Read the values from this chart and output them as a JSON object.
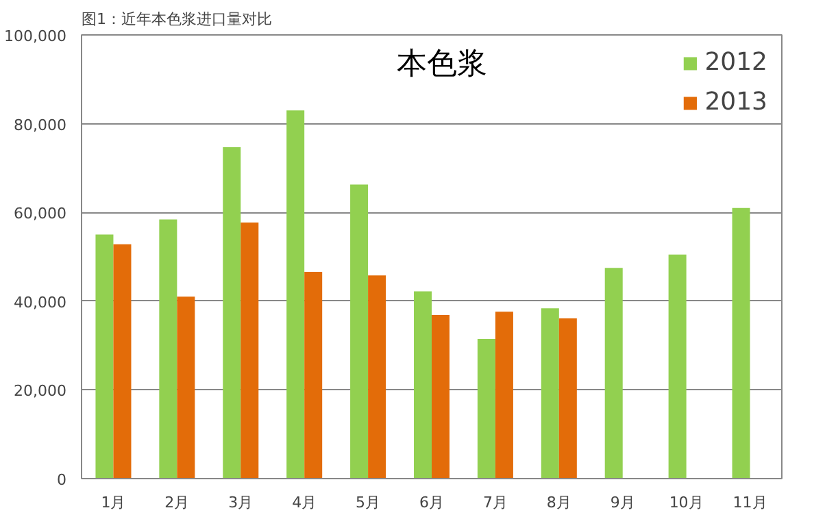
{
  "chart_data": {
    "type": "bar",
    "title": "本色浆",
    "annotations": [
      "图1：近年本色浆进口量对比"
    ],
    "categories": [
      "1月",
      "2月",
      "3月",
      "4月",
      "5月",
      "6月",
      "7月",
      "8月",
      "9月",
      "10月",
      "11月"
    ],
    "series": [
      {
        "name": "2012",
        "color": "#92d050",
        "values": [
          55000,
          58400,
          74700,
          83000,
          66300,
          42200,
          31500,
          38400,
          47500,
          50500,
          61000
        ]
      },
      {
        "name": "2013",
        "color": "#e36c09",
        "values": [
          52800,
          41000,
          57700,
          46600,
          45800,
          36900,
          37600,
          36100,
          null,
          null,
          null
        ]
      }
    ],
    "ylim": [
      0,
      100000
    ],
    "yticks": [
      {
        "value": 0,
        "label": "0"
      },
      {
        "value": 20000,
        "label": "20,000"
      },
      {
        "value": 40000,
        "label": "40,000"
      },
      {
        "value": 60000,
        "label": "60,000"
      },
      {
        "value": 80000,
        "label": "80,000"
      },
      {
        "value": 100000,
        "label": "100,000"
      }
    ],
    "grid": "y",
    "legend": "top right"
  }
}
